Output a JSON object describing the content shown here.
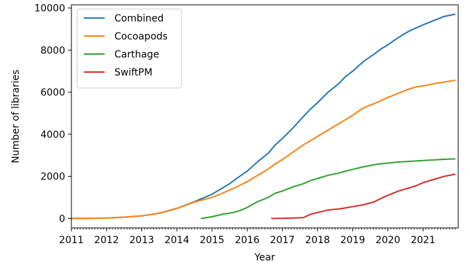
{
  "chart_data": {
    "type": "line",
    "title": "",
    "xlabel": "Year",
    "ylabel": "Number of libraries",
    "xlim": [
      2011,
      2022
    ],
    "ylim": [
      -450,
      10150
    ],
    "xticks": [
      2011,
      2012,
      2013,
      2014,
      2015,
      2016,
      2017,
      2018,
      2019,
      2020,
      2021
    ],
    "xtick_labels": [
      "2011",
      "2012",
      "2013",
      "2014",
      "2015",
      "2016",
      "2017",
      "2018",
      "2019",
      "2020",
      "2021"
    ],
    "yticks": [
      0,
      2000,
      4000,
      6000,
      8000,
      10000
    ],
    "ytick_labels": [
      "0",
      "2000",
      "4000",
      "6000",
      "8000",
      "10000"
    ],
    "grid": false,
    "legend_position": "top-left",
    "series": [
      {
        "name": "Combined",
        "color": "#1f77b4",
        "x": [
          2011.0,
          2011.5,
          2012.0,
          2012.5,
          2013.0,
          2013.5,
          2014.0,
          2014.5,
          2015.0,
          2015.3,
          2015.5,
          2015.7,
          2016.0,
          2016.3,
          2016.6,
          2016.8,
          2017.0,
          2017.3,
          2017.6,
          2017.8,
          2018.0,
          2018.3,
          2018.6,
          2018.8,
          2019.0,
          2019.3,
          2019.6,
          2019.8,
          2020.0,
          2020.3,
          2020.6,
          2020.8,
          2021.0,
          2021.3,
          2021.6,
          2021.9
        ],
        "y": [
          0,
          5,
          20,
          60,
          120,
          250,
          480,
          800,
          1150,
          1450,
          1650,
          1900,
          2250,
          2700,
          3100,
          3500,
          3800,
          4300,
          4850,
          5200,
          5500,
          6000,
          6400,
          6750,
          7000,
          7450,
          7800,
          8050,
          8250,
          8600,
          8900,
          9050,
          9200,
          9400,
          9600,
          9700
        ]
      },
      {
        "name": "Cocoapods",
        "color": "#ff7f0e",
        "x": [
          2011.0,
          2011.5,
          2012.0,
          2012.5,
          2013.0,
          2013.5,
          2014.0,
          2014.5,
          2015.0,
          2015.3,
          2015.5,
          2015.7,
          2016.0,
          2016.3,
          2016.6,
          2016.8,
          2017.0,
          2017.3,
          2017.6,
          2017.8,
          2018.0,
          2018.3,
          2018.6,
          2018.8,
          2019.0,
          2019.3,
          2019.6,
          2019.8,
          2020.0,
          2020.3,
          2020.6,
          2020.8,
          2021.0,
          2021.3,
          2021.6,
          2021.9
        ],
        "y": [
          0,
          5,
          20,
          60,
          120,
          250,
          480,
          780,
          1000,
          1200,
          1350,
          1500,
          1750,
          2050,
          2350,
          2600,
          2800,
          3150,
          3500,
          3700,
          3900,
          4200,
          4500,
          4700,
          4900,
          5250,
          5450,
          5600,
          5750,
          5950,
          6150,
          6250,
          6300,
          6400,
          6480,
          6560
        ]
      },
      {
        "name": "Carthage",
        "color": "#2ca02c",
        "x": [
          2014.7,
          2015.0,
          2015.3,
          2015.6,
          2015.8,
          2016.0,
          2016.3,
          2016.6,
          2016.8,
          2017.0,
          2017.3,
          2017.6,
          2017.8,
          2018.0,
          2018.3,
          2018.6,
          2018.8,
          2019.0,
          2019.3,
          2019.6,
          2019.8,
          2020.0,
          2020.3,
          2020.6,
          2020.8,
          2021.0,
          2021.3,
          2021.6,
          2021.9
        ],
        "y": [
          0,
          80,
          200,
          280,
          380,
          520,
          800,
          1000,
          1200,
          1300,
          1500,
          1650,
          1800,
          1900,
          2050,
          2150,
          2250,
          2330,
          2450,
          2550,
          2600,
          2630,
          2680,
          2710,
          2730,
          2750,
          2780,
          2810,
          2830
        ]
      },
      {
        "name": "SwiftPM",
        "color": "#d62728",
        "x": [
          2016.7,
          2017.0,
          2017.3,
          2017.6,
          2017.8,
          2018.0,
          2018.3,
          2018.6,
          2018.8,
          2019.0,
          2019.3,
          2019.6,
          2019.8,
          2020.0,
          2020.3,
          2020.6,
          2020.8,
          2021.0,
          2021.3,
          2021.6,
          2021.9
        ],
        "y": [
          0,
          5,
          20,
          40,
          200,
          280,
          400,
          450,
          500,
          560,
          650,
          780,
          950,
          1100,
          1300,
          1450,
          1550,
          1700,
          1850,
          2000,
          2100
        ]
      }
    ]
  }
}
